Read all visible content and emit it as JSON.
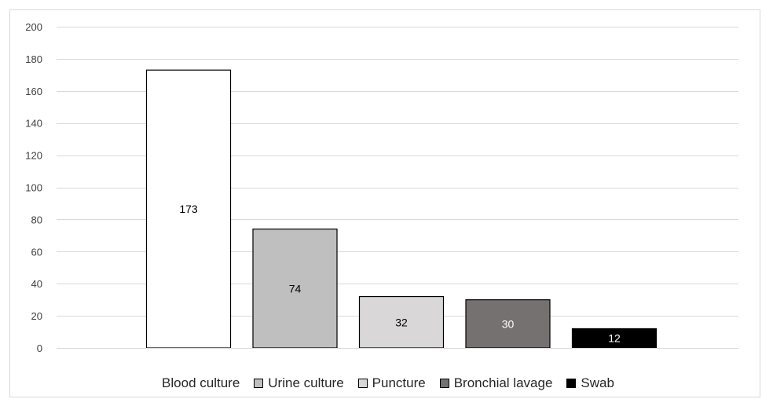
{
  "chart_data": {
    "type": "bar",
    "categories": [
      "Blood culture",
      "Urine culture",
      "Puncture",
      "Bronchial lavage",
      "Swab"
    ],
    "values": [
      173,
      74,
      32,
      30,
      12
    ],
    "colors": [
      "#ffffff",
      "#bfbfbf",
      "#d9d7d8",
      "#767171",
      "#000000"
    ],
    "label_colors": [
      "#000000",
      "#000000",
      "#000000",
      "#ffffff",
      "#ffffff"
    ],
    "ylim": [
      0,
      200
    ],
    "yticks": [
      0,
      20,
      40,
      60,
      80,
      100,
      120,
      140,
      160,
      180,
      200
    ],
    "grid": true,
    "legend_position": "bottom",
    "title": "",
    "xlabel": "",
    "ylabel": ""
  }
}
